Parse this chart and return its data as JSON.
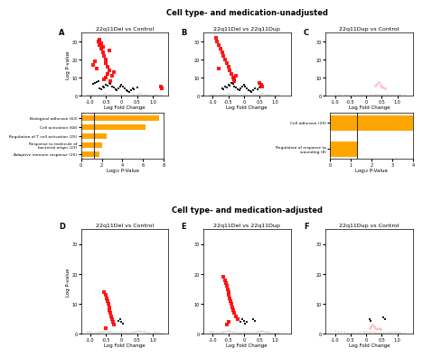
{
  "title_top": "Cell type- and medication-unadjusted",
  "title_bottom": "Cell type- and medication-adjusted",
  "panel_labels": [
    "A",
    "B",
    "C",
    "D",
    "E",
    "F"
  ],
  "volcano_titles": [
    "22q11Del vs Control",
    "22q11Del vs 22q11Dup",
    "22q11Dup vs Control",
    "22q11Del vs Control",
    "22q11Del vs 22q11Dup",
    "22q11Dup vs Control"
  ],
  "xlabel": "Log Fold Change",
  "ylabel": "Log P-value",
  "bar_xlabel": "Log₁₀ P-Value",
  "background_color": "#ffffff",
  "bar_A": {
    "labels": [
      "Biological adhesion (63)",
      "Cell activation (68)",
      "Regulation of T cell activation (25)",
      "Response to molecule of\nbacterial origin (23)",
      "Adaptive immune response (25)"
    ],
    "values": [
      7.5,
      6.2,
      2.5,
      2.0,
      1.8
    ],
    "threshold": 1.3,
    "xlim": [
      0,
      8
    ],
    "xticks": [
      0,
      2,
      4,
      6,
      8
    ]
  },
  "bar_B": {
    "labels": [
      "Cell adhesion (29)",
      "Regulation of response to\nwounding (8)"
    ],
    "values": [
      4.2,
      1.3
    ],
    "threshold": 1.3,
    "xlim": [
      0,
      4
    ],
    "xticks": [
      0,
      1,
      2,
      3,
      4
    ]
  },
  "panel_A_gray": {
    "x": [
      -0.9,
      -0.85,
      -0.8,
      -0.75,
      -0.7,
      -0.65,
      -0.6,
      -0.55,
      -0.5,
      -0.45,
      -0.4,
      -0.35,
      -0.3,
      -0.25,
      -0.2,
      -0.15,
      -0.1,
      -0.05,
      0.0,
      0.05,
      0.1,
      0.15,
      0.2,
      0.25,
      0.3,
      0.35,
      0.4,
      0.45,
      0.5,
      0.55,
      0.6,
      0.65,
      0.7,
      0.75,
      0.8,
      0.85,
      0.9,
      0.95,
      1.0,
      1.05,
      1.1,
      1.15,
      1.2,
      1.25,
      1.3,
      -0.95,
      -1.0,
      -1.05,
      -1.1
    ],
    "y": [
      0.2,
      0.3,
      0.4,
      0.5,
      0.6,
      0.7,
      0.8,
      0.9,
      1.0,
      0.8,
      0.7,
      0.6,
      0.5,
      0.4,
      0.3,
      0.3,
      0.4,
      0.5,
      0.6,
      0.5,
      0.4,
      0.3,
      0.2,
      0.3,
      0.4,
      0.5,
      0.6,
      0.7,
      0.8,
      0.9,
      1.0,
      0.8,
      0.7,
      0.6,
      0.5,
      0.4,
      0.3,
      0.2,
      0.3,
      0.4,
      0.5,
      0.4,
      0.3,
      0.2,
      0.1,
      0.5,
      0.6,
      0.7,
      0.8
    ]
  },
  "panel_A_black": {
    "x": [
      -0.7,
      -0.65,
      -0.6,
      -0.55,
      -0.5,
      -0.45,
      -0.4,
      -0.35,
      -0.3,
      -0.25,
      -0.2,
      -0.15,
      -0.1,
      -0.05,
      0.0,
      0.05,
      0.1,
      0.15,
      0.2,
      0.25,
      0.3,
      0.35,
      0.4,
      0.5,
      -0.75,
      -0.8,
      -0.85,
      -0.9
    ],
    "y": [
      4.0,
      3.5,
      5.0,
      4.5,
      6.0,
      5.5,
      7.0,
      6.5,
      5.0,
      4.5,
      3.5,
      3.0,
      4.0,
      5.0,
      6.0,
      5.0,
      4.0,
      3.0,
      2.5,
      2.0,
      3.0,
      4.0,
      3.5,
      4.5,
      8.0,
      7.5,
      7.0,
      6.5
    ]
  },
  "panel_A_red": {
    "x": [
      -0.75,
      -0.7,
      -0.65,
      -0.6,
      -0.55,
      -0.5,
      -0.5,
      -0.45,
      -0.4,
      -0.45,
      -0.5,
      -0.55,
      -0.35,
      -0.3,
      -0.25,
      -0.4,
      -0.6,
      -0.65,
      -0.7,
      -0.8,
      -0.9,
      -0.85,
      1.25,
      1.3
    ],
    "y": [
      30,
      28,
      26,
      24,
      22,
      20,
      18,
      16,
      14,
      12,
      10,
      9,
      8,
      11,
      13,
      25,
      27,
      29,
      31,
      15,
      17,
      19,
      5,
      4
    ]
  },
  "panel_B_gray": {
    "x": [
      -0.9,
      -0.85,
      -0.8,
      -0.75,
      -0.7,
      -0.65,
      -0.6,
      -0.55,
      -0.5,
      -0.45,
      -0.4,
      -0.35,
      -0.3,
      -0.25,
      -0.2,
      -0.15,
      -0.1,
      -0.05,
      0.0,
      0.05,
      0.1,
      0.15,
      0.2,
      0.25,
      0.3,
      0.35,
      0.4,
      0.45,
      0.5,
      0.55,
      0.6,
      0.65,
      0.7,
      0.75,
      0.8,
      0.85,
      0.9,
      0.95,
      1.0,
      1.05,
      1.1,
      -0.95,
      -1.0,
      -1.05,
      -1.1
    ],
    "y": [
      0.2,
      0.3,
      0.4,
      0.5,
      0.6,
      0.7,
      0.8,
      0.9,
      1.0,
      0.8,
      0.7,
      0.6,
      0.5,
      0.4,
      0.3,
      0.3,
      0.4,
      0.5,
      0.6,
      0.5,
      0.4,
      0.3,
      0.2,
      0.3,
      0.4,
      0.5,
      0.6,
      0.7,
      0.8,
      0.9,
      1.0,
      0.8,
      0.7,
      0.6,
      0.5,
      0.4,
      0.3,
      0.2,
      0.3,
      0.4,
      0.5,
      0.5,
      0.6,
      0.7,
      0.8
    ]
  },
  "panel_B_black": {
    "x": [
      -0.7,
      -0.65,
      -0.6,
      -0.55,
      -0.5,
      -0.45,
      -0.4,
      -0.35,
      -0.3,
      -0.25,
      -0.2,
      -0.15,
      -0.1,
      -0.05,
      0.0,
      0.05,
      0.1,
      0.15,
      0.2,
      0.25,
      0.3,
      0.35,
      0.5,
      0.45
    ],
    "y": [
      4.0,
      3.5,
      5.0,
      4.5,
      6.0,
      5.5,
      7.0,
      6.5,
      5.0,
      4.5,
      3.5,
      3.0,
      4.0,
      5.0,
      6.0,
      5.0,
      4.0,
      3.0,
      2.5,
      2.0,
      3.0,
      4.0,
      4.5,
      3.5
    ]
  },
  "panel_B_red": {
    "x": [
      -0.9,
      -0.85,
      -0.8,
      -0.75,
      -0.7,
      -0.65,
      -0.6,
      -0.55,
      -0.5,
      -0.45,
      -0.4,
      -0.35,
      -0.3,
      -0.3,
      -0.25,
      -0.8,
      0.5,
      0.55,
      0.6
    ],
    "y": [
      32,
      30,
      28,
      26,
      24,
      22,
      20,
      18,
      16,
      14,
      12,
      10,
      9,
      8,
      11,
      15,
      7,
      6,
      5
    ]
  },
  "panel_C_gray": {
    "x": [
      -0.5,
      -0.4,
      -0.3,
      -0.2,
      -0.1,
      0.0,
      0.1,
      0.2,
      0.3,
      0.4,
      0.5,
      0.6,
      0.7,
      0.8,
      0.9,
      1.0,
      1.1,
      -0.6,
      -0.7,
      -0.8,
      -0.9,
      -1.0,
      1.2,
      -0.15,
      -0.05,
      0.05,
      0.15,
      0.25,
      0.35,
      0.45,
      0.55,
      0.65,
      0.75,
      0.85,
      0.95,
      1.05
    ],
    "y": [
      0.3,
      0.4,
      0.5,
      0.6,
      0.7,
      0.8,
      0.7,
      0.6,
      0.5,
      0.4,
      0.3,
      0.4,
      0.5,
      0.6,
      0.7,
      0.6,
      0.5,
      0.5,
      0.6,
      0.7,
      0.8,
      0.9,
      0.4,
      0.2,
      0.3,
      0.3,
      0.2,
      0.3,
      0.4,
      0.5,
      0.5,
      0.4,
      0.3,
      0.2,
      0.3,
      0.4
    ]
  },
  "panel_C_pink": {
    "x": [
      0.3,
      0.35,
      0.4,
      0.45,
      0.5,
      0.55,
      0.6
    ],
    "y": [
      5.5,
      6.5,
      7.5,
      6.0,
      5.0,
      4.5,
      4.0
    ]
  },
  "panel_D_gray": {
    "x": [
      -0.9,
      -0.85,
      -0.8,
      -0.75,
      -0.7,
      -0.65,
      -0.6,
      -0.55,
      -0.5,
      -0.45,
      -0.4,
      -0.35,
      -0.3,
      -0.25,
      -0.2,
      -0.15,
      -0.1,
      -0.05,
      0.0,
      0.05,
      0.1,
      0.15,
      0.2,
      0.25,
      0.3,
      0.35,
      0.4,
      0.45,
      0.5,
      0.55,
      0.6,
      0.65,
      0.7,
      0.75,
      0.8,
      0.85,
      0.9,
      0.95,
      1.0,
      1.05,
      1.1,
      1.15,
      1.2,
      1.25,
      1.3,
      -0.95,
      -1.0,
      -1.05,
      -1.1
    ],
    "y": [
      0.2,
      0.3,
      0.4,
      0.5,
      0.6,
      0.7,
      0.8,
      0.9,
      1.0,
      0.8,
      0.7,
      0.6,
      0.5,
      0.4,
      0.3,
      0.3,
      0.4,
      0.5,
      0.6,
      0.5,
      0.4,
      0.3,
      0.2,
      0.3,
      0.4,
      0.5,
      0.6,
      0.7,
      0.8,
      0.9,
      1.0,
      0.8,
      0.7,
      0.6,
      0.5,
      0.4,
      0.3,
      0.2,
      0.3,
      0.4,
      0.5,
      0.4,
      0.3,
      0.2,
      0.1,
      0.5,
      0.6,
      0.7,
      0.8
    ]
  },
  "panel_D_black": {
    "x": [
      -0.1,
      -0.05,
      0.0,
      0.05
    ],
    "y": [
      4.5,
      5.0,
      4.0,
      3.5
    ]
  },
  "panel_D_red": {
    "x": [
      -0.55,
      -0.5,
      -0.48,
      -0.45,
      -0.43,
      -0.4,
      -0.38,
      -0.35,
      -0.33,
      -0.3,
      -0.28,
      -0.25,
      -0.5
    ],
    "y": [
      14,
      13,
      12,
      11,
      10,
      9,
      8,
      7,
      6,
      5,
      4,
      3,
      2
    ]
  },
  "panel_E_gray": {
    "x": [
      -0.9,
      -0.85,
      -0.8,
      -0.75,
      -0.7,
      -0.65,
      -0.6,
      -0.55,
      -0.5,
      -0.45,
      -0.4,
      -0.35,
      -0.3,
      -0.25,
      -0.2,
      -0.15,
      -0.1,
      -0.05,
      0.0,
      0.05,
      0.1,
      0.15,
      0.2,
      0.25,
      0.3,
      0.35,
      0.4,
      0.45,
      0.5,
      0.55,
      0.6,
      0.65,
      0.7,
      0.75,
      0.8,
      0.85,
      0.9,
      0.95,
      1.0,
      1.05,
      1.1,
      -0.95,
      -1.0,
      -1.05,
      -1.1
    ],
    "y": [
      0.2,
      0.3,
      0.4,
      0.5,
      0.6,
      0.7,
      0.8,
      0.9,
      1.0,
      0.8,
      0.7,
      0.6,
      0.5,
      0.4,
      0.3,
      0.3,
      0.4,
      0.5,
      0.6,
      0.5,
      0.4,
      0.3,
      0.2,
      0.3,
      0.4,
      0.5,
      0.6,
      0.7,
      0.8,
      0.9,
      1.0,
      0.8,
      0.7,
      0.6,
      0.5,
      0.4,
      0.3,
      0.2,
      0.3,
      0.4,
      0.5,
      0.5,
      0.6,
      0.7,
      0.8
    ]
  },
  "panel_E_black": {
    "x": [
      -0.1,
      -0.05,
      0.0,
      0.05,
      0.1,
      0.3,
      0.35
    ],
    "y": [
      4.0,
      5.0,
      4.5,
      3.5,
      4.0,
      5.0,
      4.5
    ]
  },
  "panel_E_red": {
    "x": [
      -0.65,
      -0.6,
      -0.58,
      -0.55,
      -0.52,
      -0.5,
      -0.48,
      -0.45,
      -0.43,
      -0.4,
      -0.38,
      -0.35,
      -0.3,
      -0.25,
      -0.2,
      -0.55,
      -0.5
    ],
    "y": [
      19,
      18,
      17,
      16,
      15,
      14,
      13,
      12,
      11,
      10,
      9,
      8,
      7,
      6,
      5,
      3,
      4
    ]
  },
  "panel_F_gray": {
    "x": [
      -0.5,
      -0.4,
      -0.3,
      -0.2,
      -0.1,
      0.0,
      0.1,
      0.2,
      0.3,
      0.4,
      0.5,
      0.6,
      0.7,
      0.8,
      0.9,
      1.0,
      1.1,
      -0.6,
      -0.7,
      -0.8,
      -0.9,
      -1.0,
      1.2,
      -0.15,
      -0.05,
      0.05,
      0.15,
      0.25,
      0.35,
      0.45,
      0.55,
      0.65,
      0.75,
      0.85,
      0.95,
      1.05
    ],
    "y": [
      0.3,
      0.4,
      0.5,
      0.6,
      0.7,
      0.8,
      0.7,
      0.6,
      0.5,
      0.4,
      0.3,
      0.4,
      0.5,
      0.6,
      0.7,
      0.6,
      0.5,
      0.5,
      0.6,
      0.7,
      0.8,
      0.9,
      0.4,
      0.2,
      0.3,
      0.3,
      0.2,
      0.3,
      0.4,
      0.5,
      0.5,
      0.4,
      0.3,
      0.2,
      0.3,
      0.4
    ]
  },
  "panel_F_pink": {
    "x": [
      0.1,
      0.15,
      0.2,
      0.25,
      0.3,
      0.35,
      0.4,
      0.45
    ],
    "y": [
      2.0,
      2.5,
      3.0,
      2.5,
      2.0,
      1.5,
      2.0,
      1.5
    ]
  },
  "panel_F_black": {
    "x": [
      0.1,
      0.15,
      0.55,
      0.6
    ],
    "y": [
      5.0,
      4.5,
      5.5,
      5.0
    ]
  }
}
